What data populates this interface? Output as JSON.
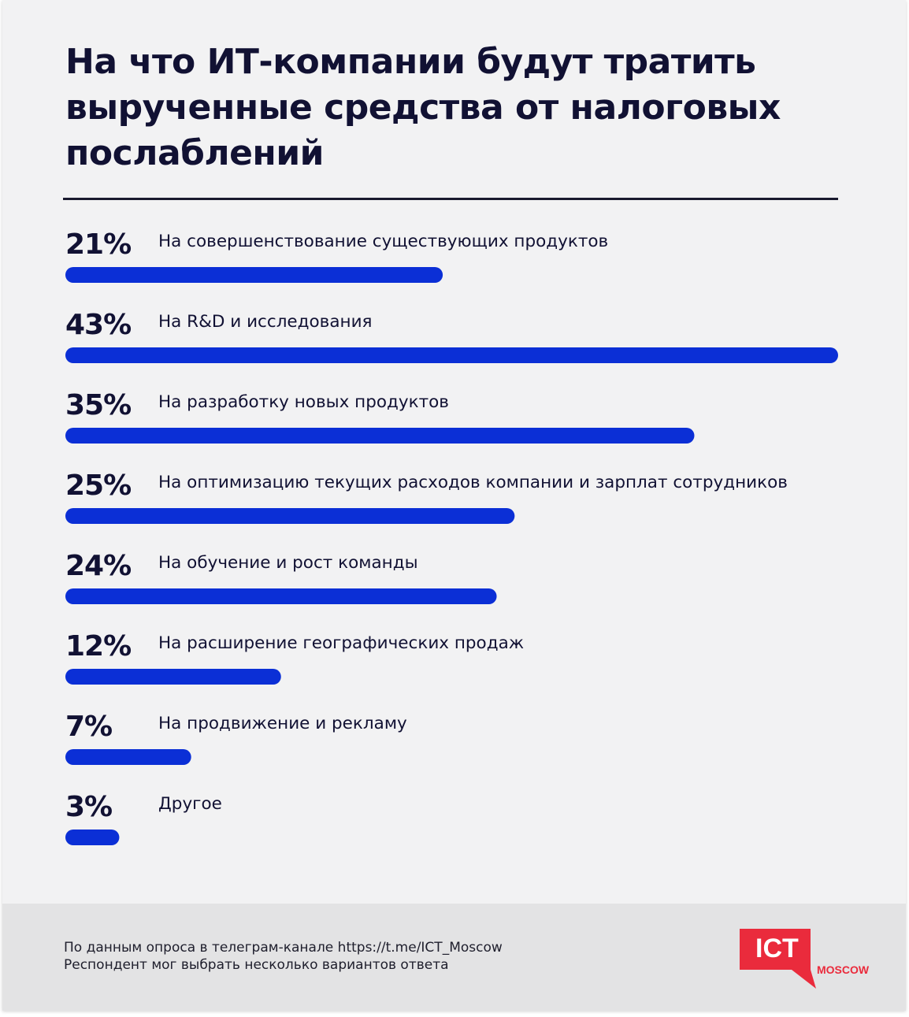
{
  "title": "На что ИТ-компании будут тратить вырученные средства от налоговых послаблений",
  "chart_data": {
    "type": "bar",
    "orientation": "horizontal",
    "categories": [
      "На совершенствование существующих продуктов",
      "На R&D и исследования",
      "На разработку новых продуктов",
      "На оптимизацию текущих расходов компании и зарплат сотрудников",
      "На обучение и рост команды",
      "На расширение географических продаж",
      "На продвижение и рекламу",
      "Другое"
    ],
    "values": [
      21,
      43,
      35,
      25,
      24,
      12,
      7,
      3
    ],
    "value_labels": [
      "21%",
      "43%",
      "35%",
      "25%",
      "24%",
      "12%",
      "7%",
      "3%"
    ],
    "unit": "%",
    "xlim": [
      0,
      43
    ],
    "grid": false,
    "legend": "none"
  },
  "footer": {
    "source_note": "По данным опроса в телеграм-канале https://t.me/ICT_Moscow",
    "multi_answer_note": "Респондент мог выбрать несколько вариантов ответа"
  },
  "logo": {
    "main_text": "ICT",
    "sub_text": "MOSCOW"
  },
  "colors": {
    "bar": "#0b2fd6",
    "text": "#111133",
    "background": "#f2f2f3",
    "footer_background": "#e3e3e4",
    "logo_red": "#ea2b3c"
  }
}
